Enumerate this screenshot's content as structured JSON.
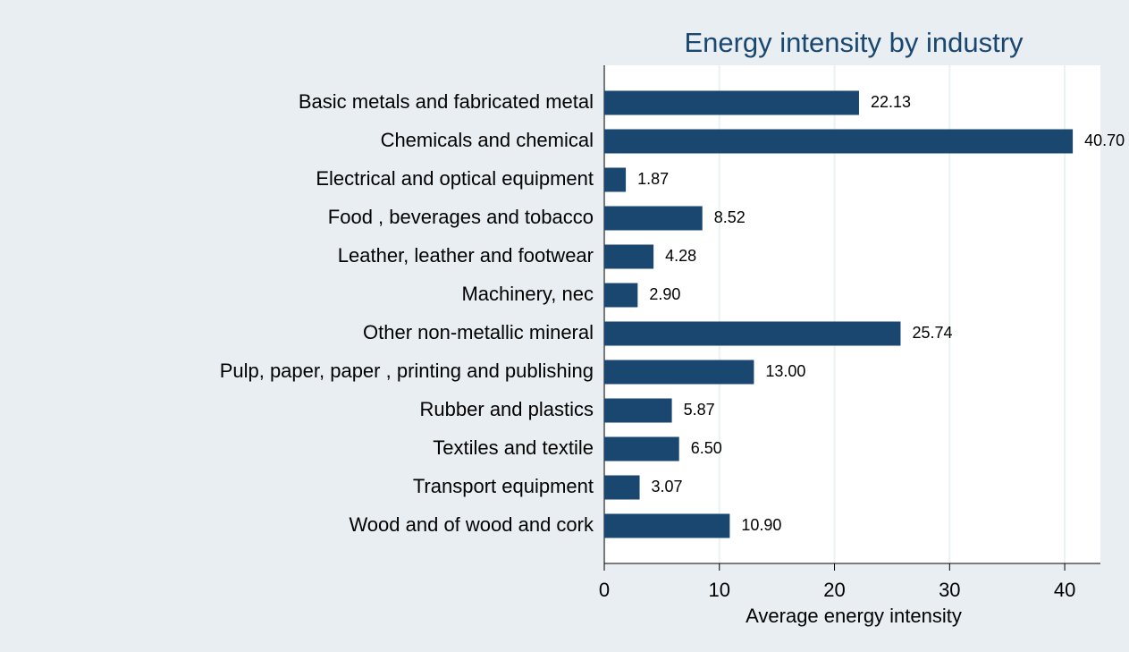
{
  "chart_data": {
    "type": "hbar",
    "title": "Energy intensity by industry",
    "x_label": "Average energy intensity",
    "categories": [
      "Basic metals and fabricated metal",
      "Chemicals and chemical",
      "Electrical and optical equipment",
      "Food , beverages and tobacco",
      "Leather, leather and footwear",
      "Machinery, nec",
      "Other non-metallic mineral",
      "Pulp, paper, paper , printing and publishing",
      "Rubber and plastics",
      "Textiles and textile",
      "Transport equipment",
      "Wood and of wood and cork"
    ],
    "values": [
      22.13,
      40.7,
      1.87,
      8.52,
      4.28,
      2.9,
      25.74,
      13,
      5.87,
      6.5,
      3.07,
      10.9
    ],
    "value_labels": [
      "22.13",
      "40.70",
      "1.87",
      "8.52",
      "4.28",
      "2.90",
      "25.74",
      "13.00",
      "5.87",
      "6.50",
      "3.07",
      "10.90"
    ],
    "color": "#1a476f",
    "xlim": [
      0,
      43.1
    ],
    "xticks": [
      0,
      10,
      20,
      30,
      40
    ],
    "grid": true
  }
}
